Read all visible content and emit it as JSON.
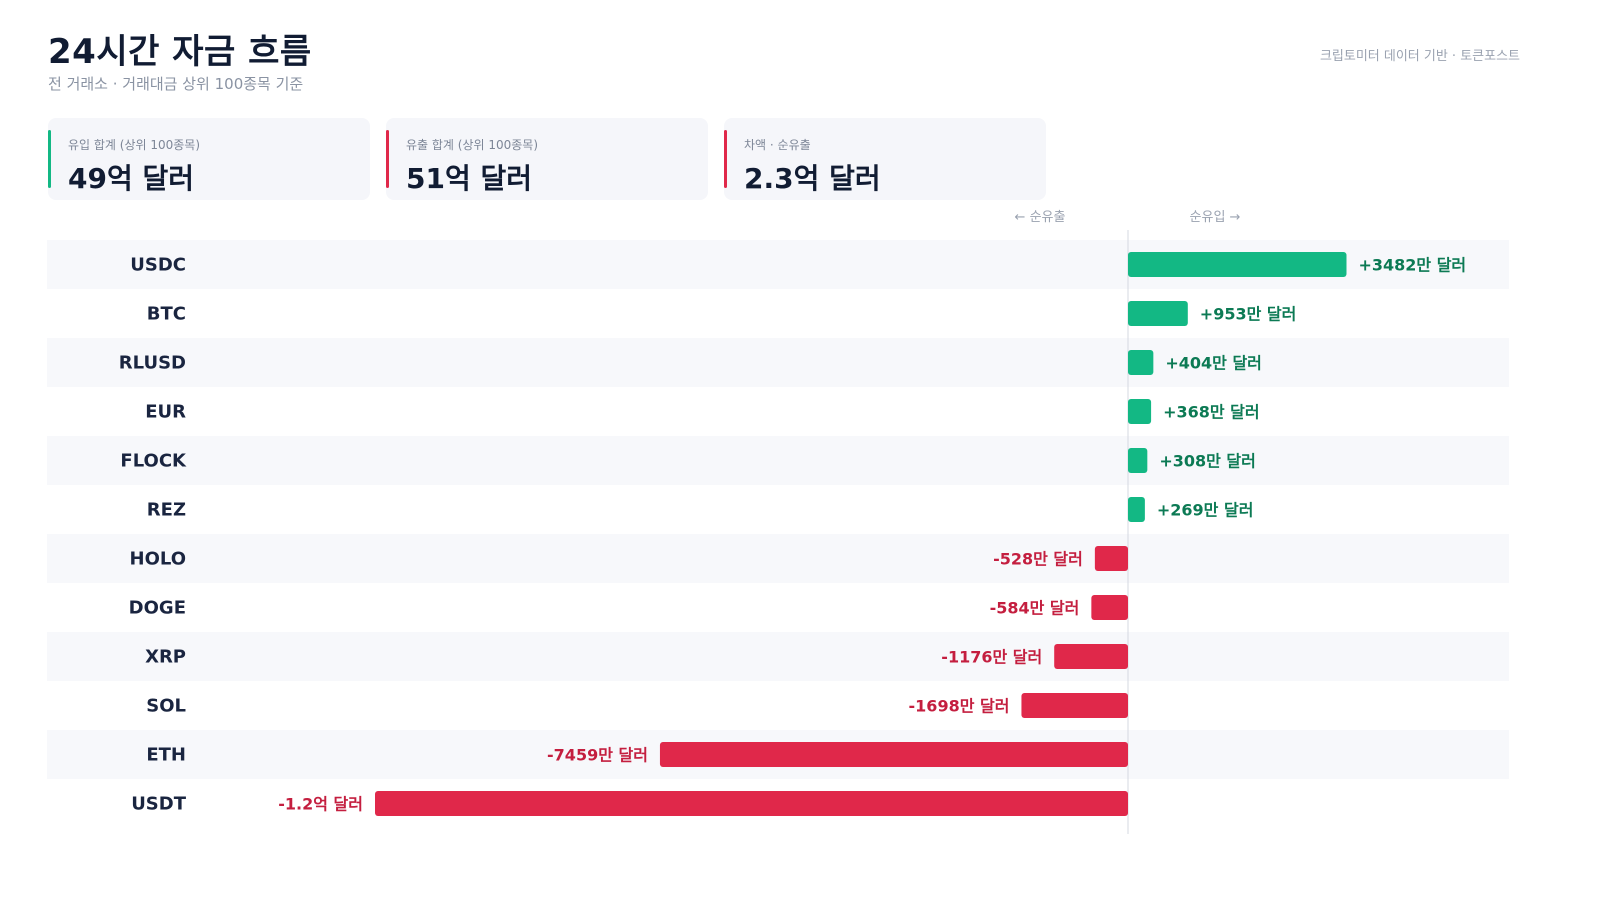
{
  "header": {
    "title": "24시간 자금 흐름",
    "subtitle": "전 거래소 · 거래대금 상위 100종목 기준",
    "source": "크립토미터 데이터 기반 · 토큰포스트"
  },
  "summary": [
    {
      "label": "유입 합계 (상위 100종목)",
      "value": "49억 달러",
      "accent": "#13b884"
    },
    {
      "label": "유출 합계 (상위 100종목)",
      "value": "51억 달러",
      "accent": "#e0284a"
    },
    {
      "label": "차액 · 순유출",
      "value": "2.3억 달러",
      "accent": "#e0284a"
    }
  ],
  "colors": {
    "inflow": "#13b884",
    "outflow": "#e0284a",
    "inflow_text": "#0c7a54",
    "outflow_text": "#c41e3f"
  },
  "chart_data": {
    "type": "bar",
    "orientation": "horizontal",
    "unit": "만 달러",
    "axis_hints": {
      "negative": "← 순유출",
      "positive": "순유입 →"
    },
    "categories": [
      "USDC",
      "BTC",
      "RLUSD",
      "EUR",
      "FLOCK",
      "REZ",
      "HOLO",
      "DOGE",
      "XRP",
      "SOL",
      "ETH",
      "USDT"
    ],
    "values": [
      3482,
      953,
      404,
      368,
      308,
      269,
      -528,
      -584,
      -1176,
      -1698,
      -7459,
      -12000
    ],
    "labels": [
      "+3482만 달러",
      "+953만 달러",
      "+404만 달러",
      "+368만 달러",
      "+308만 달러",
      "+269만 달러",
      "-528만 달러",
      "-584만 달러",
      "-1176만 달러",
      "-1698만 달러",
      "-7459만 달러",
      "-1.2억 달러"
    ]
  }
}
